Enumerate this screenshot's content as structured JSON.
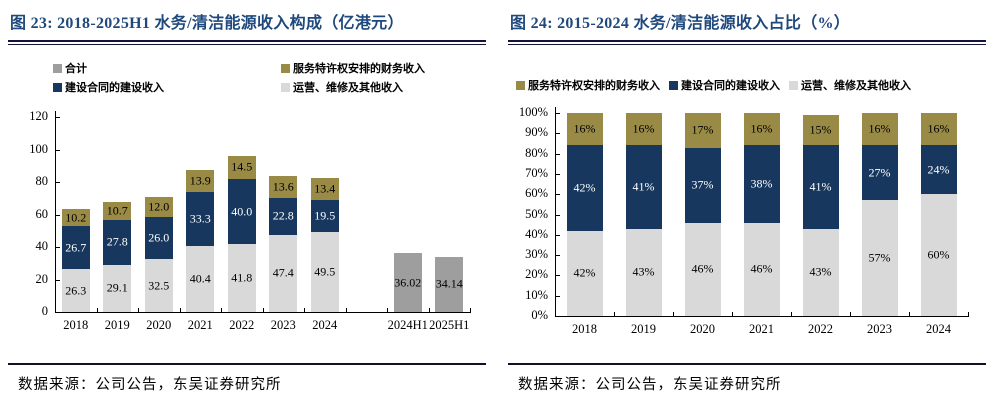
{
  "colors": {
    "navy": "#17375E",
    "olive": "#998A46",
    "light_gray": "#D9D9D9",
    "mid_gray": "#9E9E9E",
    "title_blue": "#1F497D",
    "axis_black": "#000000"
  },
  "chart_data": [
    {
      "type": "bar",
      "stacked": true,
      "title": "图 23: 2018-2025H1 水务/清洁能源收入构成（亿港元）",
      "source": "数据来源：公司公告，东吴证券研究所",
      "ylim": [
        0,
        120
      ],
      "ytick_step": 20,
      "percent": false,
      "grid": false,
      "legend_position": "top",
      "categories": [
        "2018",
        "2019",
        "2020",
        "2021",
        "2022",
        "2023",
        "2024",
        "",
        "2024H1",
        "2025H1"
      ],
      "series": [
        {
          "name": "运营、维修及其他收入",
          "color_key": "light_gray",
          "values": [
            26.3,
            29.1,
            32.5,
            40.4,
            41.8,
            47.4,
            49.5,
            null,
            null,
            null
          ],
          "labels": [
            "26.3",
            "29.1",
            "32.5",
            "40.4",
            "41.8",
            "47.4",
            "49.5",
            null,
            null,
            null
          ]
        },
        {
          "name": "建设合同的建设收入",
          "color_key": "navy",
          "values": [
            26.7,
            27.8,
            26.0,
            33.3,
            40.0,
            22.8,
            19.5,
            null,
            null,
            null
          ],
          "labels": [
            "26.7",
            "27.8",
            "26.0",
            "33.3",
            "40.0",
            "22.8",
            "19.5",
            null,
            null,
            null
          ]
        },
        {
          "name": "服务特许权安排的财务收入",
          "color_key": "olive",
          "values": [
            10.2,
            10.7,
            12.0,
            13.9,
            14.5,
            13.6,
            13.4,
            null,
            null,
            null
          ],
          "labels": [
            "10.2",
            "10.7",
            "12.0",
            "13.9",
            "14.5",
            "13.6",
            "13.4",
            null,
            null,
            null
          ]
        },
        {
          "name": "合计",
          "color_key": "mid_gray",
          "values": [
            null,
            null,
            null,
            null,
            null,
            null,
            null,
            null,
            36.02,
            34.14
          ],
          "labels": [
            null,
            null,
            null,
            null,
            null,
            null,
            null,
            null,
            "36.02",
            "34.14"
          ]
        }
      ],
      "legend": [
        {
          "label": "合计",
          "color_key": "mid_gray"
        },
        {
          "label": "服务特许权安排的财务收入",
          "color_key": "olive"
        },
        {
          "label": "建设合同的建设收入",
          "color_key": "navy"
        },
        {
          "label": "运营、维修及其他收入",
          "color_key": "light_gray"
        }
      ]
    },
    {
      "type": "bar",
      "stacked": true,
      "title": "图 24: 2015-2024 水务/清洁能源收入占比（%）",
      "source": "数据来源：公司公告，东吴证券研究所",
      "ylim": [
        0,
        100
      ],
      "ytick_step": 10,
      "percent": true,
      "grid": false,
      "legend_position": "top",
      "categories": [
        "2018",
        "2019",
        "2020",
        "2021",
        "2022",
        "2023",
        "2024"
      ],
      "series": [
        {
          "name": "运营、维修及其他收入",
          "color_key": "light_gray",
          "values": [
            42,
            43,
            46,
            46,
            43,
            57,
            60
          ],
          "labels": [
            "42%",
            "43%",
            "46%",
            "46%",
            "43%",
            "57%",
            "60%"
          ]
        },
        {
          "name": "建设合同的建设收入",
          "color_key": "navy",
          "values": [
            42,
            41,
            37,
            38,
            41,
            27,
            24
          ],
          "labels": [
            "42%",
            "41%",
            "37%",
            "38%",
            "41%",
            "27%",
            "24%"
          ]
        },
        {
          "name": "服务特许权安排的财务收入",
          "color_key": "olive",
          "values": [
            16,
            16,
            17,
            16,
            15,
            16,
            16
          ],
          "labels": [
            "16%",
            "16%",
            "17%",
            "16%",
            "15%",
            "16%",
            "16%"
          ]
        }
      ],
      "legend": [
        {
          "label": "服务特许权安排的财务收入",
          "color_key": "olive"
        },
        {
          "label": "建设合同的建设收入",
          "color_key": "navy"
        },
        {
          "label": "运营、维修及其他收入",
          "color_key": "light_gray"
        }
      ]
    }
  ]
}
